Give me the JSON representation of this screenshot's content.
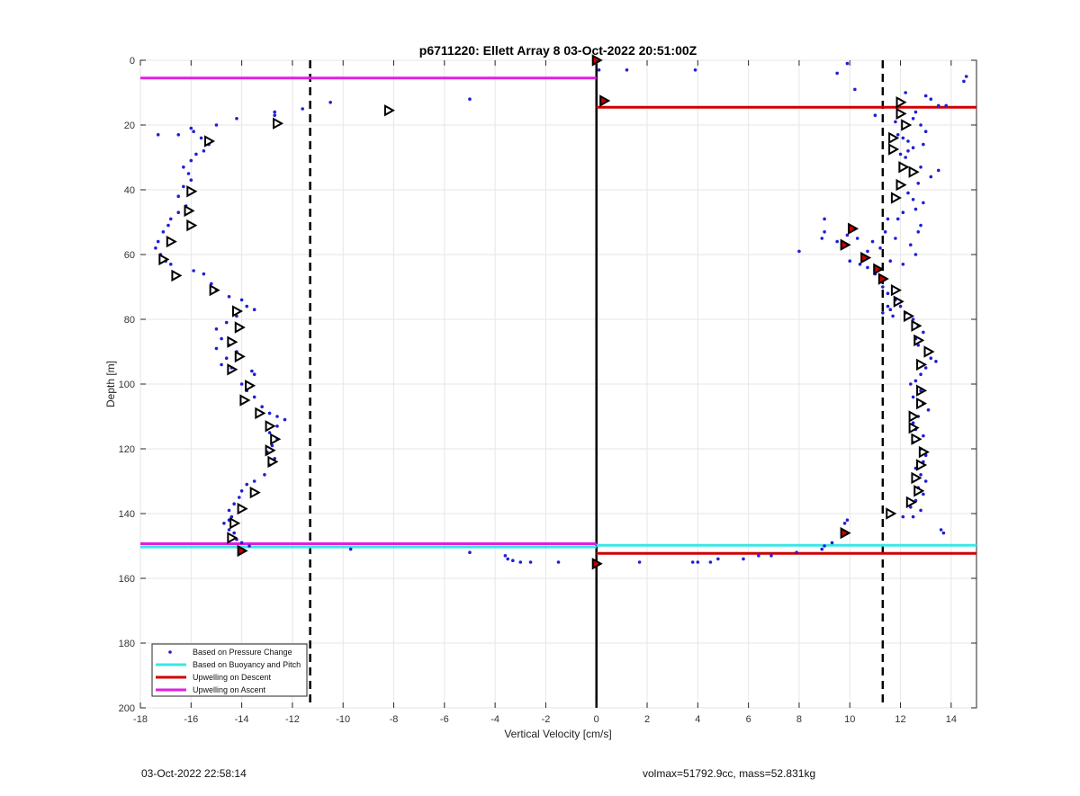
{
  "footer": {
    "timestamp": "03-Oct-2022 22:58:14",
    "info": "volmax=51792.9cc, mass=52.831kg"
  },
  "chart_data": {
    "type": "scatter",
    "title": "p6711220: Ellett Array 8 03-Oct-2022 20:51:00Z",
    "xlabel": "Vertical Velocity [cm/s]",
    "ylabel": "Depth [m]",
    "xlim": [
      -18,
      15
    ],
    "ylim": [
      200,
      0
    ],
    "y_reversed": true,
    "grid": true,
    "x_ticks": [
      -18,
      -16,
      -14,
      -12,
      -10,
      -8,
      -6,
      -4,
      -2,
      0,
      2,
      4,
      6,
      8,
      10,
      12,
      14
    ],
    "y_ticks": [
      0,
      20,
      40,
      60,
      80,
      100,
      120,
      140,
      160,
      180,
      200
    ],
    "legend_position": "bottom-left",
    "legend": [
      {
        "label": "Based on Pressure Change",
        "color": "#1f1fd6",
        "style": "dot"
      },
      {
        "label": "Based on Buoyancy and Pitch",
        "color": "#3ce6e6",
        "style": "line"
      },
      {
        "label": "Upwelling on Descent",
        "color": "#d00000",
        "style": "line"
      },
      {
        "label": "Upwelling on Ascent",
        "color": "#e01ee0",
        "style": "line"
      }
    ],
    "reference_lines": {
      "zero_line_x": 0,
      "dashed_x": [
        -11.3,
        11.3
      ],
      "ascent_upwelling": [
        {
          "x0": -18,
          "x1": 0,
          "y": 5.5
        },
        {
          "x0": -18,
          "x1": 0,
          "y": 149.3
        }
      ],
      "descent_upwelling": [
        {
          "x0": 0,
          "x1": 15,
          "y": 14.5
        },
        {
          "x0": 0,
          "x1": 15,
          "y": 152.3
        }
      ],
      "buoyancy_pitch": [
        {
          "x0": -18,
          "x1": 0,
          "y": 150.3
        },
        {
          "x0": 0,
          "x1": 15,
          "y": 149.8
        }
      ]
    },
    "series": [
      {
        "name": "Based on Pressure Change",
        "color": "#1f1fd6",
        "points": [
          [
            14.6,
            5
          ],
          [
            14.5,
            6.5
          ],
          [
            13.8,
            14
          ],
          [
            13.5,
            14
          ],
          [
            13.2,
            12
          ],
          [
            13.0,
            11
          ],
          [
            12.6,
            16
          ],
          [
            12.2,
            10
          ],
          [
            12.5,
            18
          ],
          [
            12.8,
            20
          ],
          [
            13.0,
            22
          ],
          [
            12.9,
            26
          ],
          [
            12.5,
            27
          ],
          [
            12.2,
            30
          ],
          [
            12.0,
            29
          ],
          [
            12.3,
            25
          ],
          [
            12.1,
            24
          ],
          [
            11.8,
            19
          ],
          [
            11.9,
            23
          ],
          [
            12.3,
            28
          ],
          [
            12.8,
            33
          ],
          [
            13.2,
            36
          ],
          [
            13.5,
            34
          ],
          [
            12.7,
            38
          ],
          [
            12.3,
            41
          ],
          [
            12.5,
            43
          ],
          [
            12.9,
            44
          ],
          [
            12.6,
            46
          ],
          [
            12.1,
            47
          ],
          [
            11.9,
            49
          ],
          [
            11.5,
            49
          ],
          [
            11.4,
            53
          ],
          [
            11.8,
            55
          ],
          [
            12.4,
            57
          ],
          [
            12.7,
            53
          ],
          [
            12.8,
            51
          ],
          [
            12.6,
            60
          ],
          [
            12.1,
            63
          ],
          [
            11.6,
            62
          ],
          [
            11.2,
            58
          ],
          [
            10.9,
            56
          ],
          [
            10.7,
            59
          ],
          [
            10.3,
            55
          ],
          [
            9.9,
            54
          ],
          [
            9.5,
            56
          ],
          [
            9.0,
            53
          ],
          [
            8.9,
            55
          ],
          [
            9.0,
            49
          ],
          [
            8.0,
            59
          ],
          [
            10.0,
            62
          ],
          [
            10.4,
            63
          ],
          [
            10.7,
            64
          ],
          [
            11.0,
            66
          ],
          [
            11.3,
            68
          ],
          [
            11.3,
            70
          ],
          [
            11.5,
            72
          ],
          [
            11.8,
            74
          ],
          [
            12.0,
            76
          ],
          [
            11.6,
            77
          ],
          [
            11.3,
            78
          ],
          [
            11.5,
            76
          ],
          [
            11.7,
            79
          ],
          [
            12.2,
            78
          ],
          [
            12.5,
            80
          ],
          [
            12.7,
            82
          ],
          [
            12.9,
            84
          ],
          [
            12.6,
            86
          ],
          [
            12.7,
            88
          ],
          [
            13.2,
            92
          ],
          [
            13.4,
            93
          ],
          [
            13.0,
            95
          ],
          [
            12.8,
            97
          ],
          [
            12.6,
            99
          ],
          [
            12.4,
            100
          ],
          [
            12.8,
            102
          ],
          [
            12.5,
            104
          ],
          [
            12.9,
            106
          ],
          [
            13.1,
            108
          ],
          [
            12.7,
            110
          ],
          [
            12.5,
            112
          ],
          [
            12.6,
            114
          ],
          [
            12.9,
            116
          ],
          [
            12.5,
            118
          ],
          [
            12.8,
            120
          ],
          [
            13.0,
            122
          ],
          [
            12.9,
            124
          ],
          [
            12.6,
            126
          ],
          [
            12.8,
            128
          ],
          [
            13.0,
            130
          ],
          [
            12.7,
            132
          ],
          [
            12.9,
            134
          ],
          [
            12.6,
            136
          ],
          [
            12.4,
            138
          ],
          [
            12.8,
            139
          ],
          [
            12.5,
            141
          ],
          [
            12.1,
            141
          ],
          [
            13.6,
            145
          ],
          [
            13.7,
            146
          ],
          [
            9.9,
            142
          ],
          [
            9.8,
            143
          ],
          [
            9.3,
            149
          ],
          [
            9.0,
            150
          ],
          [
            8.9,
            151
          ],
          [
            7.9,
            152
          ],
          [
            6.9,
            153
          ],
          [
            6.4,
            153
          ],
          [
            5.8,
            154
          ],
          [
            4.8,
            154
          ],
          [
            4.5,
            155
          ],
          [
            4.0,
            155
          ],
          [
            3.8,
            155
          ],
          [
            1.7,
            155
          ],
          [
            0.1,
            3
          ],
          [
            1.2,
            3
          ],
          [
            3.9,
            3
          ],
          [
            9.5,
            4
          ],
          [
            10.2,
            9
          ],
          [
            11.0,
            17
          ],
          [
            9.9,
            1
          ],
          [
            -0.0,
            0.5
          ],
          [
            -17.3,
            56
          ],
          [
            -17.4,
            58
          ],
          [
            -17.1,
            53
          ],
          [
            -16.9,
            51
          ],
          [
            -16.8,
            49
          ],
          [
            -16.5,
            47
          ],
          [
            -16.2,
            45
          ],
          [
            -16.5,
            42
          ],
          [
            -16.3,
            39
          ],
          [
            -16.0,
            37
          ],
          [
            -16.1,
            35
          ],
          [
            -16.3,
            33
          ],
          [
            -16.0,
            31
          ],
          [
            -15.8,
            29
          ],
          [
            -15.5,
            28
          ],
          [
            -15.3,
            26
          ],
          [
            -15.6,
            24
          ],
          [
            -15.9,
            22
          ],
          [
            -16.0,
            21
          ],
          [
            -16.5,
            23
          ],
          [
            -17.3,
            23
          ],
          [
            -15.0,
            20
          ],
          [
            -14.2,
            18
          ],
          [
            -12.7,
            16
          ],
          [
            -12.7,
            17
          ],
          [
            -11.6,
            15
          ],
          [
            -10.5,
            13
          ],
          [
            -5.0,
            12
          ],
          [
            -17.2,
            60
          ],
          [
            -17.0,
            62
          ],
          [
            -16.8,
            63
          ],
          [
            -15.9,
            65
          ],
          [
            -15.5,
            66
          ],
          [
            -15.2,
            69
          ],
          [
            -15.0,
            71
          ],
          [
            -14.5,
            73
          ],
          [
            -14.0,
            74
          ],
          [
            -13.8,
            76
          ],
          [
            -13.5,
            77
          ],
          [
            -14.2,
            79
          ],
          [
            -14.6,
            81
          ],
          [
            -15.0,
            83
          ],
          [
            -14.8,
            86
          ],
          [
            -14.5,
            88
          ],
          [
            -14.2,
            90
          ],
          [
            -14.6,
            92
          ],
          [
            -15.0,
            89
          ],
          [
            -14.8,
            94
          ],
          [
            -14.4,
            95
          ],
          [
            -13.6,
            96
          ],
          [
            -13.5,
            97
          ],
          [
            -14.0,
            100
          ],
          [
            -13.8,
            102
          ],
          [
            -13.5,
            104
          ],
          [
            -13.2,
            107
          ],
          [
            -12.9,
            109
          ],
          [
            -12.6,
            110
          ],
          [
            -12.3,
            111
          ],
          [
            -12.6,
            113
          ],
          [
            -12.9,
            115
          ],
          [
            -12.6,
            117
          ],
          [
            -12.8,
            119
          ],
          [
            -13.0,
            121
          ],
          [
            -12.7,
            123
          ],
          [
            -12.9,
            125
          ],
          [
            -13.1,
            128
          ],
          [
            -13.5,
            130
          ],
          [
            -13.8,
            131
          ],
          [
            -14.0,
            133
          ],
          [
            -14.1,
            135
          ],
          [
            -14.3,
            137
          ],
          [
            -14.5,
            139
          ],
          [
            -14.4,
            141
          ],
          [
            -14.5,
            142
          ],
          [
            -14.7,
            143
          ],
          [
            -14.5,
            145
          ],
          [
            -14.3,
            146
          ],
          [
            -14.2,
            148
          ],
          [
            -14.0,
            149
          ],
          [
            -13.7,
            150
          ],
          [
            -9.7,
            151
          ],
          [
            -5.0,
            152
          ],
          [
            -3.6,
            153
          ],
          [
            -3.5,
            154
          ],
          [
            -3.3,
            154.5
          ],
          [
            -3.0,
            155
          ],
          [
            -2.6,
            155
          ],
          [
            -1.5,
            155
          ],
          [
            -0.1,
            155
          ]
        ]
      },
      {
        "name": "",
        "color": "#000000",
        "marker": "triangle-right",
        "points": [
          [
            12.0,
            13
          ],
          [
            12.0,
            16.5
          ],
          [
            12.2,
            20
          ],
          [
            11.7,
            24
          ],
          [
            11.7,
            27.5
          ],
          [
            12.1,
            33
          ],
          [
            12.5,
            34.5
          ],
          [
            12.0,
            38.5
          ],
          [
            11.8,
            42.5
          ],
          [
            11.8,
            71
          ],
          [
            11.9,
            74.5
          ],
          [
            12.3,
            79
          ],
          [
            12.6,
            82
          ],
          [
            12.7,
            86.5
          ],
          [
            13.1,
            90
          ],
          [
            12.8,
            94
          ],
          [
            12.8,
            102
          ],
          [
            12.8,
            106
          ],
          [
            12.5,
            110
          ],
          [
            12.5,
            113.5
          ],
          [
            12.6,
            117
          ],
          [
            12.9,
            121
          ],
          [
            12.8,
            125
          ],
          [
            12.6,
            129
          ],
          [
            12.7,
            133
          ],
          [
            12.4,
            136.5
          ],
          [
            11.6,
            140
          ],
          [
            -8.2,
            15.5
          ],
          [
            -12.6,
            19.5
          ],
          [
            -15.3,
            25
          ],
          [
            -16.0,
            40.5
          ],
          [
            -16.1,
            46.5
          ],
          [
            -16.0,
            51
          ],
          [
            -16.8,
            56
          ],
          [
            -17.1,
            61.5
          ],
          [
            -16.6,
            66.5
          ],
          [
            -15.1,
            71
          ],
          [
            -14.2,
            77.5
          ],
          [
            -14.1,
            82.5
          ],
          [
            -14.4,
            87
          ],
          [
            -14.1,
            91.5
          ],
          [
            -14.4,
            95.5
          ],
          [
            -13.7,
            100.5
          ],
          [
            -13.9,
            105
          ],
          [
            -13.3,
            109
          ],
          [
            -12.9,
            113
          ],
          [
            -12.7,
            117
          ],
          [
            -12.9,
            120.5
          ],
          [
            -12.8,
            124
          ],
          [
            -13.5,
            133.5
          ],
          [
            -14.0,
            138.5
          ],
          [
            -14.3,
            143
          ],
          [
            -14.4,
            147.5
          ]
        ]
      },
      {
        "name": "",
        "color": "#cc0000",
        "marker": "filled-triangle",
        "points": [
          [
            0.3,
            12.5
          ],
          [
            10.1,
            52
          ],
          [
            9.8,
            57
          ],
          [
            10.6,
            61
          ],
          [
            11.1,
            64.5
          ],
          [
            11.3,
            67.5
          ],
          [
            9.8,
            146
          ],
          [
            -14.0,
            151.5
          ],
          [
            0.0,
            0
          ],
          [
            0.0,
            155.5
          ]
        ]
      }
    ]
  }
}
